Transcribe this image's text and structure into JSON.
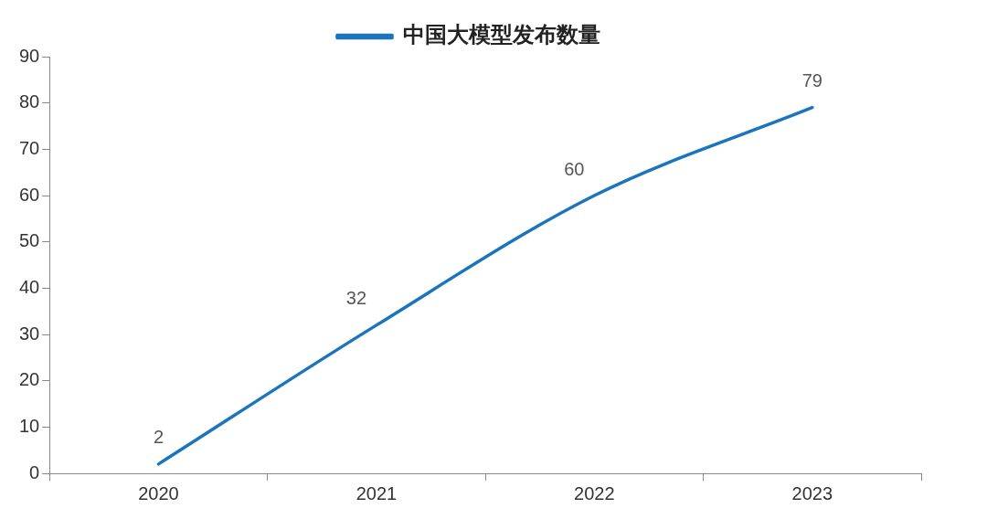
{
  "chart_data": {
    "type": "line",
    "categories": [
      "2020",
      "2021",
      "2022",
      "2023"
    ],
    "series": [
      {
        "name": "中国大模型发布数量",
        "color": "#1a75bc",
        "values": [
          2,
          32,
          60,
          79
        ]
      }
    ],
    "ylim": [
      0,
      90
    ],
    "yticks": [
      0,
      10,
      20,
      30,
      40,
      50,
      60,
      70,
      80,
      90
    ],
    "grid": false,
    "legend": "top",
    "data_labels": true,
    "marker": "none"
  }
}
